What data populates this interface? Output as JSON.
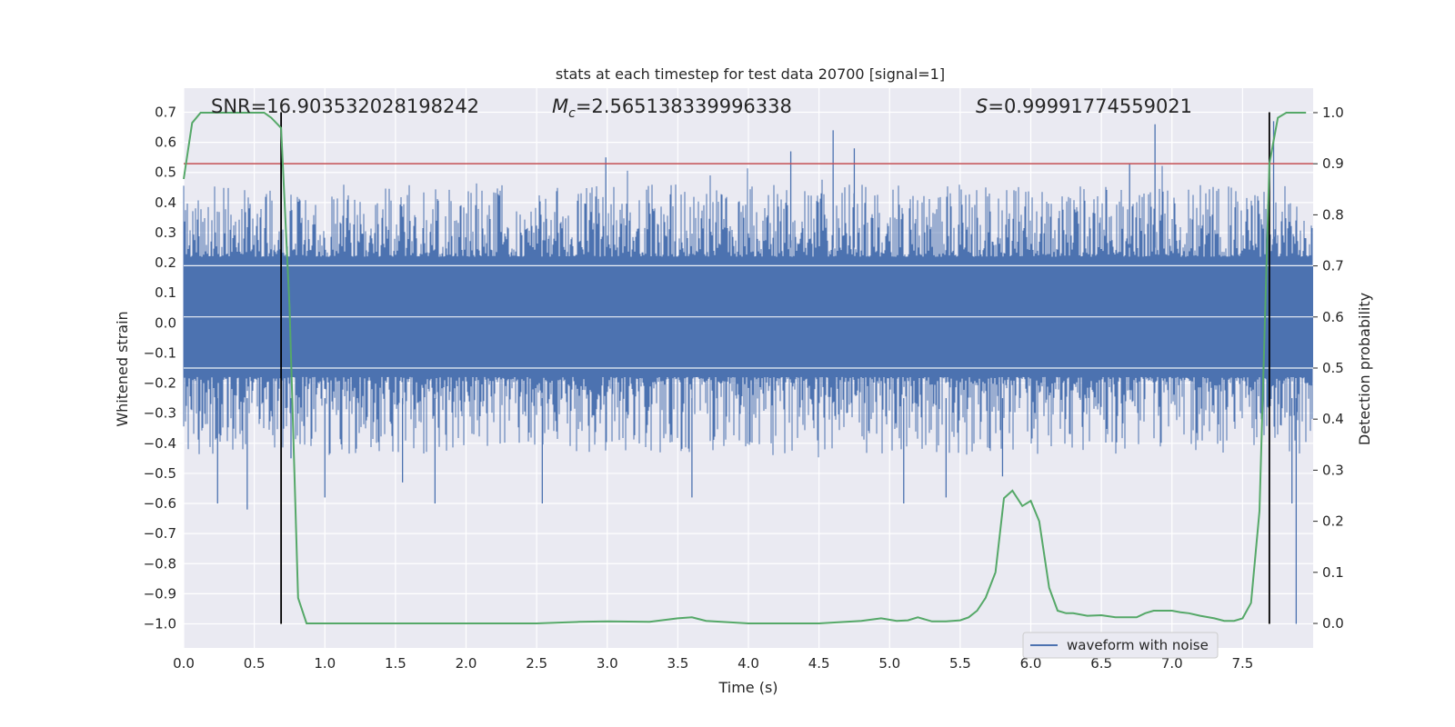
{
  "chart_data": {
    "type": "line",
    "title": "stats at each timestep for test data 20700 [signal=1]",
    "xlabel": "Time (s)",
    "ylabel": "Whitened strain",
    "y2label": "Detection probability",
    "xlim": [
      0,
      8
    ],
    "ylim": [
      -1.08,
      0.78
    ],
    "y2lim": [
      -0.048,
      1.048
    ],
    "xticks": [
      "0.0",
      "0.5",
      "1.0",
      "1.5",
      "2.0",
      "2.5",
      "3.0",
      "3.5",
      "4.0",
      "4.5",
      "5.0",
      "5.5",
      "6.0",
      "6.5",
      "7.0",
      "7.5"
    ],
    "yticks": [
      "−1.0",
      "−0.9",
      "−0.8",
      "−0.7",
      "−0.6",
      "−0.5",
      "−0.4",
      "−0.3",
      "−0.2",
      "−0.1",
      "0.0",
      "0.1",
      "0.2",
      "0.3",
      "0.4",
      "0.5",
      "0.6",
      "0.7"
    ],
    "y2ticks": [
      "0.0",
      "0.1",
      "0.2",
      "0.3",
      "0.4",
      "0.5",
      "0.6",
      "0.7",
      "0.8",
      "0.9",
      "1.0"
    ],
    "grid": true,
    "legend": {
      "position": "lower-right",
      "entries": [
        "waveform with noise"
      ]
    },
    "annotations": {
      "snr": "SNR=16.903532028198242",
      "mc_symbol": "M",
      "mc_sub": "c",
      "mc_value": "=2.565138339996338",
      "s_symbol": "S",
      "s_value": "=0.99991774559021"
    },
    "threshold": {
      "axis": "y2",
      "value": 0.9,
      "color": "#c44e52"
    },
    "vlines": [
      {
        "x": 0.69,
        "y_range": [
          -1.0,
          0.7
        ],
        "color": "#000000"
      },
      {
        "x": 7.69,
        "y_range": [
          -1.0,
          0.7
        ],
        "color": "#000000"
      }
    ],
    "series": [
      {
        "name": "waveform with noise",
        "axis": "y",
        "color": "#4c72b0",
        "kind": "noise",
        "x_range": [
          0,
          8
        ],
        "band": [
          -0.15,
          0.19
        ],
        "envelope": [
          -0.5,
          0.5
        ],
        "spikes": [
          {
            "x": 0.24,
            "y": -0.6
          },
          {
            "x": 0.45,
            "y": -0.62
          },
          {
            "x": 0.69,
            "y": 0.63
          },
          {
            "x": 0.76,
            "y": -0.45
          },
          {
            "x": 1.0,
            "y": -0.58
          },
          {
            "x": 1.55,
            "y": -0.53
          },
          {
            "x": 1.78,
            "y": -0.6
          },
          {
            "x": 2.54,
            "y": -0.6
          },
          {
            "x": 2.99,
            "y": 0.55
          },
          {
            "x": 3.6,
            "y": -0.58
          },
          {
            "x": 4.3,
            "y": 0.57
          },
          {
            "x": 4.6,
            "y": 0.64
          },
          {
            "x": 4.75,
            "y": 0.58
          },
          {
            "x": 5.1,
            "y": -0.6
          },
          {
            "x": 5.4,
            "y": -0.58
          },
          {
            "x": 5.8,
            "y": -0.51
          },
          {
            "x": 6.7,
            "y": 0.53
          },
          {
            "x": 6.88,
            "y": 0.66
          },
          {
            "x": 7.72,
            "y": 0.67
          },
          {
            "x": 7.85,
            "y": -0.6
          },
          {
            "x": 7.88,
            "y": -1.0
          }
        ]
      },
      {
        "name": "",
        "axis": "y2",
        "color": "#55a868",
        "x": [
          0.0,
          0.06,
          0.12,
          0.2,
          0.3,
          0.4,
          0.5,
          0.57,
          0.62,
          0.69,
          0.75,
          0.81,
          0.87,
          0.94,
          1.0,
          1.2,
          1.5,
          2.0,
          2.5,
          2.8,
          3.0,
          3.3,
          3.5,
          3.6,
          3.7,
          4.0,
          4.5,
          4.8,
          4.94,
          5.05,
          5.13,
          5.2,
          5.3,
          5.4,
          5.5,
          5.56,
          5.62,
          5.68,
          5.75,
          5.81,
          5.87,
          5.94,
          6.0,
          6.06,
          6.13,
          6.19,
          6.25,
          6.3,
          6.4,
          6.5,
          6.6,
          6.75,
          6.81,
          6.87,
          6.94,
          7.0,
          7.06,
          7.12,
          7.2,
          7.3,
          7.37,
          7.44,
          7.5,
          7.56,
          7.62,
          7.69,
          7.75,
          7.81,
          7.87,
          7.95
        ],
        "y": [
          0.87,
          0.98,
          1.0,
          1.0,
          1.0,
          1.0,
          1.0,
          1.0,
          0.99,
          0.97,
          0.62,
          0.05,
          0.0,
          0.0,
          0.0,
          0.0,
          0.0,
          0.0,
          0.0,
          0.003,
          0.004,
          0.003,
          0.01,
          0.012,
          0.005,
          0.0,
          0.0,
          0.005,
          0.01,
          0.005,
          0.006,
          0.012,
          0.004,
          0.004,
          0.006,
          0.012,
          0.025,
          0.05,
          0.1,
          0.245,
          0.26,
          0.23,
          0.24,
          0.2,
          0.07,
          0.025,
          0.02,
          0.02,
          0.015,
          0.016,
          0.012,
          0.012,
          0.02,
          0.025,
          0.025,
          0.025,
          0.022,
          0.02,
          0.015,
          0.01,
          0.005,
          0.005,
          0.01,
          0.04,
          0.22,
          0.9,
          0.99,
          1.0,
          1.0,
          1.0
        ]
      }
    ]
  }
}
